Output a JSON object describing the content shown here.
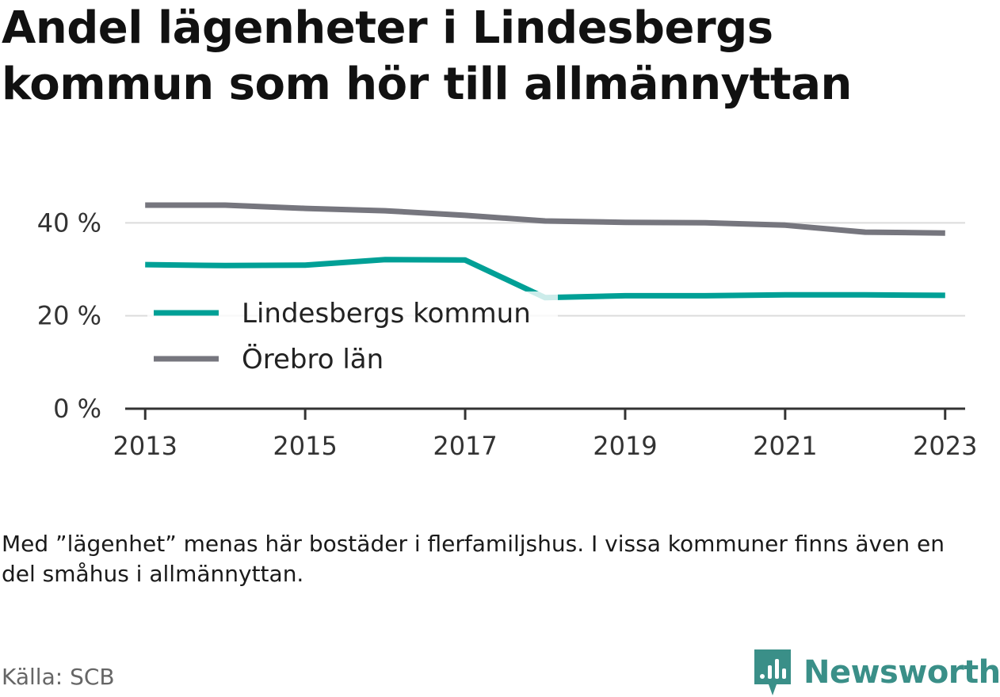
{
  "title_lines": [
    "Andel lägenheter i Lindesbergs",
    "kommun som hör till allmännyttan"
  ],
  "note": "Med ”lägenhet” menas här bostäder i flerfamiljshus. I vissa kommuner finns även en del småhus i allmännyttan.",
  "source": "Källa: SCB",
  "brand": {
    "name": "Newsworthy",
    "icon": "bar-chart-speech-bubble-icon",
    "color": "#3a8f88"
  },
  "chart_data": {
    "type": "line",
    "title": "Andel lägenheter i Lindesbergs kommun som hör till allmännyttan",
    "x": [
      2013,
      2014,
      2015,
      2016,
      2017,
      2018,
      2019,
      2020,
      2021,
      2022,
      2023
    ],
    "xticks": [
      "2013",
      "2015",
      "2017",
      "2019",
      "2021",
      "2023"
    ],
    "xlim": [
      2012.75,
      2023.25
    ],
    "ylim": [
      0,
      45
    ],
    "yticks": [
      0,
      20,
      40
    ],
    "ytick_labels": [
      "0 %",
      "20 %",
      "40 %"
    ],
    "grid": true,
    "legend_position": "middle-left",
    "series": [
      {
        "name": "Lindesbergs kommun",
        "color": "#00a096",
        "values": [
          31.0,
          30.8,
          30.9,
          32.1,
          32.0,
          23.9,
          24.3,
          24.3,
          24.5,
          24.5,
          24.4
        ]
      },
      {
        "name": "Örebro län",
        "color": "#76767e",
        "values": [
          43.8,
          43.8,
          43.1,
          42.6,
          41.6,
          40.4,
          40.1,
          40.0,
          39.5,
          38.0,
          37.8
        ]
      }
    ]
  }
}
